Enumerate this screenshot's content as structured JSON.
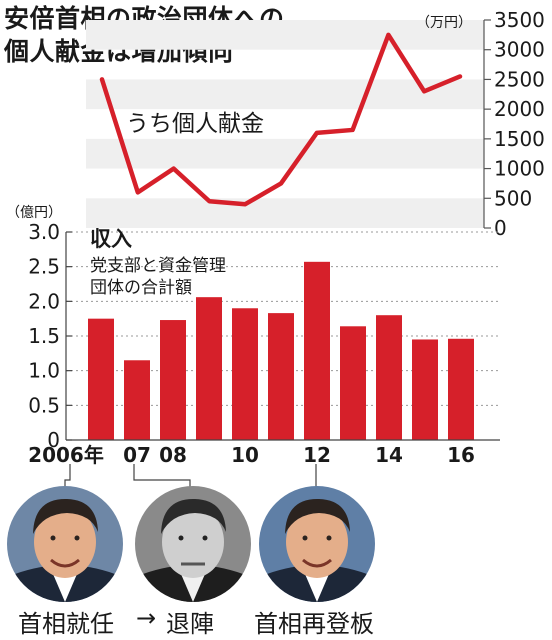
{
  "title": {
    "line1": "安倍首相の政治団体への",
    "line2": "個人献金は増加傾向"
  },
  "chart_data": [
    {
      "type": "line",
      "series_label": "うち個人献金",
      "unit": "（万円）",
      "y_ticks": [
        "3500",
        "3000",
        "2500",
        "2000",
        "1500",
        "1000",
        "500",
        "0"
      ],
      "ylim": [
        0,
        3500
      ],
      "grid": "alternating bands",
      "x": [
        2006,
        2007,
        2008,
        2009,
        2010,
        2011,
        2012,
        2013,
        2014,
        2015,
        2016
      ],
      "values": [
        2500,
        600,
        1000,
        450,
        400,
        750,
        1600,
        1650,
        3250,
        2300,
        2550
      ],
      "color": "#d6202a"
    },
    {
      "type": "bar",
      "title": "収入",
      "subtitle_line1": "党支部と資金管理",
      "subtitle_line2": "団体の合計額",
      "unit": "（億円）",
      "y_ticks": [
        "3.0",
        "2.5",
        "2.0",
        "1.5",
        "1.0",
        "0.5",
        "0"
      ],
      "ylim": [
        0,
        3.0
      ],
      "x_labels": [
        {
          "index": 0,
          "text": "2006年"
        },
        {
          "index": 1,
          "text": "07"
        },
        {
          "index": 2,
          "text": "08"
        },
        {
          "index": 4,
          "text": "10"
        },
        {
          "index": 6,
          "text": "12"
        },
        {
          "index": 8,
          "text": "14"
        },
        {
          "index": 10,
          "text": "16"
        }
      ],
      "categories": [
        2006,
        2007,
        2008,
        2009,
        2010,
        2011,
        2012,
        2013,
        2014,
        2015,
        2016
      ],
      "values": [
        1.75,
        1.15,
        1.73,
        2.06,
        1.9,
        1.83,
        2.57,
        1.64,
        1.8,
        1.45,
        1.46
      ],
      "color": "#d6202a"
    }
  ],
  "annotations": {
    "left": "首相就任",
    "arrow": "→",
    "middle": "退陣",
    "right": "首相再登板"
  }
}
